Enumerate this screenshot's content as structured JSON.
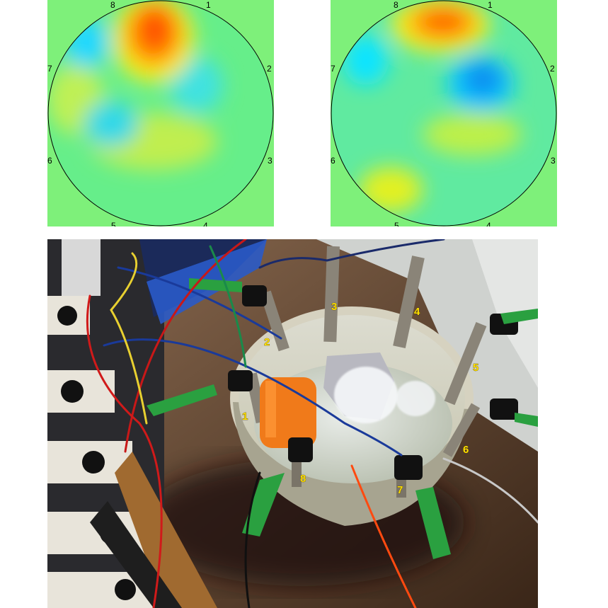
{
  "maps": [
    {
      "electrode_labels": [
        "1",
        "2",
        "3",
        "4",
        "5",
        "6",
        "7",
        "8"
      ],
      "blobs": [
        {
          "kind": "high",
          "color": "#ff5a00"
        },
        {
          "kind": "low",
          "color": "#00e8ff"
        },
        {
          "kind": "low",
          "color": "#30e0f0"
        },
        {
          "kind": "low",
          "color": "#40e8d8"
        },
        {
          "kind": "mid",
          "color": "#c8f040"
        }
      ]
    },
    {
      "electrode_labels": [
        "1",
        "2",
        "3",
        "4",
        "5",
        "6",
        "7",
        "8"
      ],
      "blobs": [
        {
          "kind": "high",
          "color": "#ff6a00"
        },
        {
          "kind": "low",
          "color": "#0a9cf0"
        },
        {
          "kind": "low",
          "color": "#10e8ff"
        },
        {
          "kind": "mid",
          "color": "#e0f020"
        }
      ]
    }
  ],
  "photo": {
    "electrode_numbers": [
      "1",
      "2",
      "3",
      "4",
      "5",
      "6",
      "7",
      "8"
    ],
    "label_color": "#ffe000"
  },
  "colors": {
    "map_background": "#7ef07a",
    "map_base": "#66ee88",
    "circle_stroke": "#000000"
  }
}
